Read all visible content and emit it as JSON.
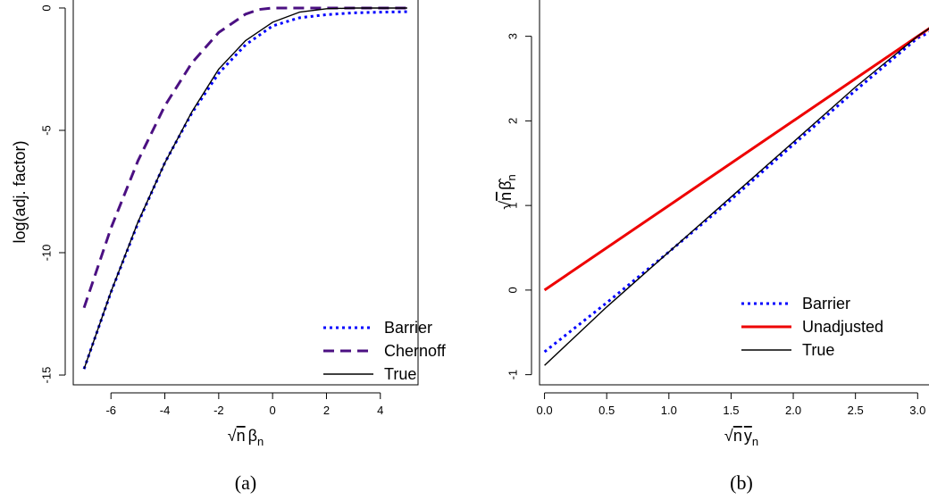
{
  "colors": {
    "barrier": "#0000ff",
    "chernoff": "#4b1082",
    "true": "#000000",
    "unadjusted": "#ee0000"
  },
  "chart_data": [
    {
      "type": "line",
      "caption": "(a)",
      "xlabel": "√n β_n",
      "ylabel": "log(adj. factor)",
      "xlim": [
        -7.4,
        5.4
      ],
      "ylim": [
        -15.4,
        0.4
      ],
      "xticks": [
        "-6",
        "-4",
        "-2",
        "0",
        "2",
        "4"
      ],
      "xtick_values": [
        -6,
        -4,
        -2,
        0,
        2,
        4
      ],
      "yticks": [
        "0",
        "-5",
        "-10",
        "-15"
      ],
      "ytick_values": [
        0,
        -5,
        -10,
        -15
      ],
      "legend_position": "bottom-right",
      "series": [
        {
          "name": "Barrier",
          "style": "dotted",
          "color": "#0000ff",
          "x": [
            -7,
            -6,
            -5,
            -4,
            -3,
            -2,
            -1,
            0,
            1,
            2,
            3,
            4,
            5
          ],
          "y": [
            -14.75,
            -11.62,
            -8.8,
            -6.33,
            -4.3,
            -2.67,
            -1.5,
            -0.73,
            -0.4,
            -0.27,
            -0.2,
            -0.17,
            -0.15
          ]
        },
        {
          "name": "Chernoff",
          "style": "dashed",
          "color": "#4b1082",
          "x": [
            -7,
            -6,
            -5,
            -4,
            -3,
            -2,
            -1,
            -0.5,
            0,
            2,
            5
          ],
          "y": [
            -12.25,
            -9.0,
            -6.25,
            -4.0,
            -2.25,
            -1.0,
            -0.25,
            -0.06,
            0,
            0,
            0
          ]
        },
        {
          "name": "True",
          "style": "solid",
          "color": "#000000",
          "x": [
            -7,
            -6,
            -5,
            -4,
            -3,
            -2,
            -1,
            0,
            1,
            2,
            3,
            4,
            5
          ],
          "y": [
            -14.75,
            -11.6,
            -8.75,
            -6.33,
            -4.25,
            -2.5,
            -1.33,
            -0.58,
            -0.17,
            -0.03,
            0,
            0,
            0
          ]
        }
      ]
    },
    {
      "type": "line",
      "caption": "(b)",
      "xlabel": "√n y̅_n",
      "ylabel": "√n β̂_n",
      "xlim": [
        -0.04,
        3.12
      ],
      "ylim": [
        -1.12,
        3.45
      ],
      "xticks": [
        "0.0",
        "0.5",
        "1.0",
        "1.5",
        "2.0",
        "2.5",
        "3.0"
      ],
      "xtick_values": [
        0,
        0.5,
        1.0,
        1.5,
        2.0,
        2.5,
        3.0
      ],
      "yticks": [
        "-1",
        "0",
        "1",
        "2",
        "3"
      ],
      "ytick_values": [
        -1,
        0,
        1,
        2,
        3
      ],
      "legend_position": "bottom-right",
      "series": [
        {
          "name": "Barrier",
          "style": "dotted",
          "color": "#0000ff",
          "x": [
            0,
            0.5,
            1.0,
            1.5,
            2.0,
            2.5,
            3.0,
            3.1
          ],
          "y": [
            -0.73,
            -0.15,
            0.45,
            1.07,
            1.72,
            2.36,
            2.98,
            3.05
          ]
        },
        {
          "name": "Unadjusted",
          "style": "solid",
          "color": "#ee0000",
          "x": [
            0,
            3.1
          ],
          "y": [
            0,
            3.1
          ]
        },
        {
          "name": "True",
          "style": "solid",
          "color": "#000000",
          "x": [
            0,
            0.5,
            1.0,
            1.5,
            2.0,
            2.5,
            3.0,
            3.1
          ],
          "y": [
            -0.89,
            -0.2,
            0.45,
            1.1,
            1.75,
            2.4,
            3.0,
            3.1
          ]
        }
      ]
    }
  ]
}
